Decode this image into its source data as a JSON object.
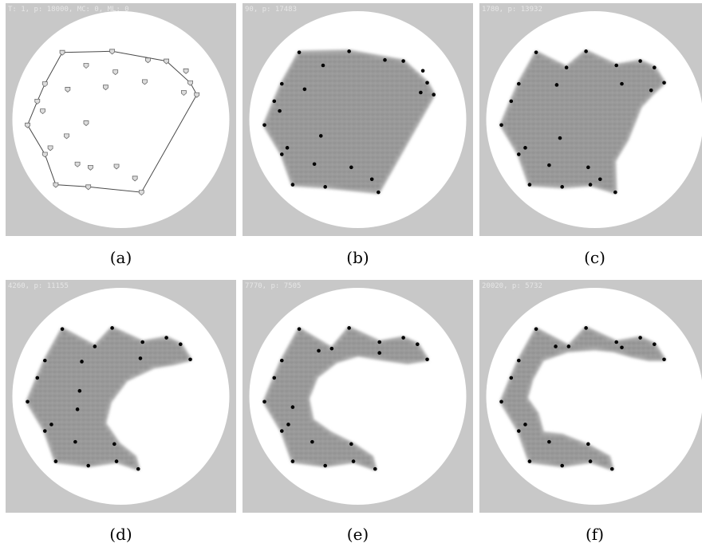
{
  "panels": [
    {
      "label": "(a)",
      "stamp": "T: 1,  p: 18000,  MC: 0,  ML: 0",
      "kind": "hull",
      "hull": [
        [
          -0.54,
          -0.62
        ],
        [
          -0.08,
          -0.63
        ],
        [
          0.42,
          -0.54
        ],
        [
          0.64,
          -0.34
        ],
        [
          0.7,
          -0.23
        ],
        [
          0.19,
          0.67
        ],
        [
          -0.3,
          0.62
        ],
        [
          -0.6,
          0.6
        ],
        [
          -0.7,
          0.32
        ],
        [
          -0.86,
          0.05
        ],
        [
          -0.77,
          -0.17
        ],
        [
          -0.7,
          -0.33
        ]
      ],
      "points": [
        [
          -0.54,
          -0.62
        ],
        [
          -0.08,
          -0.63
        ],
        [
          0.42,
          -0.54
        ],
        [
          0.64,
          -0.34
        ],
        [
          0.7,
          -0.23
        ],
        [
          0.19,
          0.67
        ],
        [
          -0.3,
          0.62
        ],
        [
          -0.6,
          0.6
        ],
        [
          -0.7,
          0.32
        ],
        [
          -0.86,
          0.05
        ],
        [
          -0.77,
          -0.17
        ],
        [
          -0.7,
          -0.33
        ],
        [
          -0.32,
          -0.5
        ],
        [
          -0.05,
          -0.44
        ],
        [
          0.25,
          -0.55
        ],
        [
          0.6,
          -0.45
        ],
        [
          -0.14,
          -0.3
        ],
        [
          -0.49,
          -0.28
        ],
        [
          0.22,
          -0.35
        ],
        [
          0.58,
          -0.25
        ],
        [
          -0.72,
          -0.08
        ],
        [
          -0.5,
          0.15
        ],
        [
          -0.32,
          0.03
        ],
        [
          -0.65,
          0.26
        ],
        [
          -0.4,
          0.41
        ],
        [
          -0.28,
          0.44
        ],
        [
          -0.04,
          0.43
        ],
        [
          0.13,
          0.54
        ]
      ]
    },
    {
      "label": "(b)",
      "stamp": "90,  p: 17483",
      "kind": "blob",
      "hull": [
        [
          -0.54,
          -0.62
        ],
        [
          -0.08,
          -0.63
        ],
        [
          0.42,
          -0.54
        ],
        [
          0.64,
          -0.34
        ],
        [
          0.7,
          -0.23
        ],
        [
          0.19,
          0.67
        ],
        [
          -0.3,
          0.62
        ],
        [
          -0.6,
          0.6
        ],
        [
          -0.7,
          0.32
        ],
        [
          -0.86,
          0.05
        ],
        [
          -0.77,
          -0.17
        ],
        [
          -0.7,
          -0.33
        ]
      ],
      "points": [
        [
          -0.54,
          -0.62
        ],
        [
          -0.08,
          -0.63
        ],
        [
          0.42,
          -0.54
        ],
        [
          0.64,
          -0.34
        ],
        [
          0.7,
          -0.23
        ],
        [
          0.19,
          0.67
        ],
        [
          -0.3,
          0.62
        ],
        [
          -0.6,
          0.6
        ],
        [
          -0.7,
          0.32
        ],
        [
          -0.86,
          0.05
        ],
        [
          -0.77,
          -0.17
        ],
        [
          -0.7,
          -0.33
        ],
        [
          -0.32,
          -0.5
        ],
        [
          0.25,
          -0.55
        ],
        [
          0.6,
          -0.45
        ],
        [
          0.58,
          -0.25
        ],
        [
          -0.49,
          -0.28
        ],
        [
          -0.72,
          -0.08
        ],
        [
          -0.34,
          0.15
        ],
        [
          -0.65,
          0.26
        ],
        [
          -0.4,
          0.41
        ],
        [
          -0.06,
          0.44
        ],
        [
          0.13,
          0.55
        ]
      ]
    },
    {
      "label": "(c)",
      "stamp": "1780,  p: 13932",
      "kind": "blob",
      "hull": [
        [
          -0.54,
          -0.62
        ],
        [
          -0.26,
          -0.48
        ],
        [
          -0.08,
          -0.63
        ],
        [
          0.2,
          -0.5
        ],
        [
          0.42,
          -0.54
        ],
        [
          0.55,
          -0.48
        ],
        [
          0.64,
          -0.34
        ],
        [
          0.53,
          -0.24
        ],
        [
          0.42,
          -0.12
        ],
        [
          0.3,
          0.18
        ],
        [
          0.18,
          0.38
        ],
        [
          0.19,
          0.67
        ],
        [
          -0.04,
          0.6
        ],
        [
          -0.3,
          0.62
        ],
        [
          -0.6,
          0.6
        ],
        [
          -0.7,
          0.32
        ],
        [
          -0.86,
          0.05
        ],
        [
          -0.77,
          -0.17
        ],
        [
          -0.7,
          -0.33
        ]
      ],
      "points": [
        [
          -0.54,
          -0.62
        ],
        [
          -0.26,
          -0.48
        ],
        [
          -0.08,
          -0.63
        ],
        [
          0.2,
          -0.5
        ],
        [
          0.42,
          -0.54
        ],
        [
          0.55,
          -0.48
        ],
        [
          0.64,
          -0.34
        ],
        [
          0.52,
          -0.27
        ],
        [
          0.19,
          0.67
        ],
        [
          -0.04,
          0.6
        ],
        [
          -0.3,
          0.62
        ],
        [
          -0.6,
          0.6
        ],
        [
          -0.7,
          0.32
        ],
        [
          -0.86,
          0.05
        ],
        [
          -0.77,
          -0.17
        ],
        [
          -0.7,
          -0.33
        ],
        [
          -0.35,
          -0.32
        ],
        [
          0.25,
          -0.33
        ],
        [
          -0.32,
          0.17
        ],
        [
          -0.64,
          0.26
        ],
        [
          -0.42,
          0.42
        ],
        [
          -0.06,
          0.44
        ],
        [
          0.05,
          0.55
        ]
      ]
    },
    {
      "label": "(d)",
      "stamp": "4260,  p: 11155",
      "kind": "blob",
      "hull": [
        [
          -0.54,
          -0.62
        ],
        [
          -0.24,
          -0.46
        ],
        [
          -0.08,
          -0.63
        ],
        [
          0.2,
          -0.5
        ],
        [
          0.42,
          -0.54
        ],
        [
          0.55,
          -0.48
        ],
        [
          0.64,
          -0.34
        ],
        [
          0.48,
          -0.3
        ],
        [
          0.3,
          -0.27
        ],
        [
          0.05,
          -0.15
        ],
        [
          -0.1,
          0.05
        ],
        [
          -0.15,
          0.25
        ],
        [
          -0.02,
          0.44
        ],
        [
          0.13,
          0.56
        ],
        [
          0.16,
          0.67
        ],
        [
          -0.04,
          0.6
        ],
        [
          -0.3,
          0.64
        ],
        [
          -0.6,
          0.6
        ],
        [
          -0.7,
          0.32
        ],
        [
          -0.86,
          0.05
        ],
        [
          -0.77,
          -0.17
        ],
        [
          -0.7,
          -0.33
        ]
      ],
      "points": [
        [
          -0.54,
          -0.62
        ],
        [
          -0.24,
          -0.46
        ],
        [
          -0.08,
          -0.63
        ],
        [
          0.2,
          -0.5
        ],
        [
          0.42,
          -0.54
        ],
        [
          0.55,
          -0.48
        ],
        [
          0.64,
          -0.34
        ],
        [
          0.16,
          0.67
        ],
        [
          -0.04,
          0.6
        ],
        [
          -0.3,
          0.64
        ],
        [
          -0.6,
          0.6
        ],
        [
          -0.7,
          0.32
        ],
        [
          -0.86,
          0.05
        ],
        [
          -0.77,
          -0.17
        ],
        [
          -0.7,
          -0.33
        ],
        [
          -0.36,
          -0.32
        ],
        [
          0.18,
          -0.35
        ],
        [
          -0.4,
          0.12
        ],
        [
          -0.64,
          0.26
        ],
        [
          -0.42,
          0.42
        ],
        [
          -0.06,
          0.44
        ],
        [
          -0.38,
          -0.05
        ]
      ]
    },
    {
      "label": "(e)",
      "stamp": "7770,  p: 7505",
      "kind": "blob",
      "hull": [
        [
          -0.54,
          -0.62
        ],
        [
          -0.24,
          -0.44
        ],
        [
          -0.08,
          -0.63
        ],
        [
          0.2,
          -0.5
        ],
        [
          0.42,
          -0.54
        ],
        [
          0.55,
          -0.48
        ],
        [
          0.64,
          -0.34
        ],
        [
          0.46,
          -0.31
        ],
        [
          0.25,
          -0.34
        ],
        [
          0.0,
          -0.38
        ],
        [
          -0.2,
          -0.32
        ],
        [
          -0.38,
          -0.18
        ],
        [
          -0.46,
          0.02
        ],
        [
          -0.42,
          0.22
        ],
        [
          -0.25,
          0.34
        ],
        [
          -0.05,
          0.44
        ],
        [
          0.13,
          0.56
        ],
        [
          0.16,
          0.67
        ],
        [
          -0.04,
          0.6
        ],
        [
          -0.3,
          0.64
        ],
        [
          -0.6,
          0.6
        ],
        [
          -0.7,
          0.32
        ],
        [
          -0.86,
          0.05
        ],
        [
          -0.77,
          -0.17
        ],
        [
          -0.7,
          -0.33
        ]
      ],
      "points": [
        [
          -0.54,
          -0.62
        ],
        [
          -0.24,
          -0.44
        ],
        [
          -0.08,
          -0.63
        ],
        [
          0.2,
          -0.5
        ],
        [
          0.42,
          -0.54
        ],
        [
          0.55,
          -0.48
        ],
        [
          0.64,
          -0.34
        ],
        [
          0.16,
          0.67
        ],
        [
          -0.04,
          0.6
        ],
        [
          -0.3,
          0.64
        ],
        [
          -0.6,
          0.6
        ],
        [
          -0.7,
          0.32
        ],
        [
          -0.86,
          0.05
        ],
        [
          -0.77,
          -0.17
        ],
        [
          -0.7,
          -0.33
        ],
        [
          -0.36,
          -0.42
        ],
        [
          0.2,
          -0.4
        ],
        [
          -0.6,
          0.1
        ],
        [
          -0.64,
          0.26
        ],
        [
          -0.42,
          0.42
        ],
        [
          -0.06,
          0.44
        ]
      ]
    },
    {
      "label": "(f)",
      "stamp": "20020,  p: 5732",
      "kind": "blob",
      "hull": [
        [
          -0.54,
          -0.62
        ],
        [
          -0.24,
          -0.46
        ],
        [
          -0.08,
          -0.63
        ],
        [
          0.2,
          -0.5
        ],
        [
          0.42,
          -0.54
        ],
        [
          0.55,
          -0.48
        ],
        [
          0.64,
          -0.34
        ],
        [
          0.5,
          -0.34
        ],
        [
          0.35,
          -0.37
        ],
        [
          0.18,
          -0.42
        ],
        [
          0.0,
          -0.44
        ],
        [
          -0.25,
          -0.42
        ],
        [
          -0.48,
          -0.34
        ],
        [
          -0.58,
          -0.16
        ],
        [
          -0.63,
          0.02
        ],
        [
          -0.53,
          0.16
        ],
        [
          -0.48,
          0.34
        ],
        [
          -0.3,
          0.36
        ],
        [
          -0.05,
          0.46
        ],
        [
          0.13,
          0.56
        ],
        [
          0.16,
          0.67
        ],
        [
          -0.04,
          0.6
        ],
        [
          -0.3,
          0.64
        ],
        [
          -0.6,
          0.6
        ],
        [
          -0.7,
          0.32
        ],
        [
          -0.86,
          0.05
        ],
        [
          -0.77,
          -0.17
        ],
        [
          -0.7,
          -0.33
        ]
      ],
      "points": [
        [
          -0.54,
          -0.62
        ],
        [
          -0.24,
          -0.46
        ],
        [
          -0.08,
          -0.63
        ],
        [
          0.2,
          -0.5
        ],
        [
          0.42,
          -0.54
        ],
        [
          0.55,
          -0.48
        ],
        [
          0.64,
          -0.34
        ],
        [
          0.16,
          0.67
        ],
        [
          -0.04,
          0.6
        ],
        [
          -0.3,
          0.64
        ],
        [
          -0.6,
          0.6
        ],
        [
          -0.7,
          0.32
        ],
        [
          -0.86,
          0.05
        ],
        [
          -0.77,
          -0.17
        ],
        [
          -0.7,
          -0.33
        ],
        [
          -0.36,
          -0.46
        ],
        [
          0.25,
          -0.45
        ],
        [
          -0.64,
          0.26
        ],
        [
          -0.42,
          0.42
        ],
        [
          -0.06,
          0.44
        ]
      ]
    }
  ],
  "colors": {
    "panel_bg": "#c8c8c8",
    "disk": "#ffffff",
    "hull_line": "#4a4a4a",
    "blob_fill": "#9a9a9a",
    "point": "#000000"
  }
}
